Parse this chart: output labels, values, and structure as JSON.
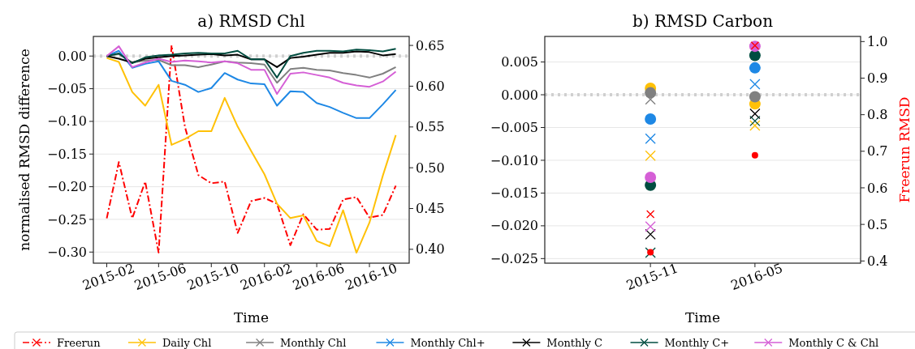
{
  "chart_data": [
    {
      "type": "line",
      "title": "a) RMSD Chl",
      "xlabel": "Time",
      "ylabel": "normalised RMSD difference",
      "x": [
        "2015-02",
        "2015-03",
        "2015-04",
        "2015-05",
        "2015-06",
        "2015-07",
        "2015-08",
        "2015-09",
        "2015-10",
        "2015-11",
        "2015-12",
        "2016-01",
        "2016-02",
        "2016-03",
        "2016-04",
        "2016-05",
        "2016-06",
        "2016-07",
        "2016-08",
        "2016-09",
        "2016-10",
        "2016-11",
        "2016-12"
      ],
      "series": [
        {
          "name": "Freerun",
          "color": "#ff0000",
          "axis": "y2",
          "line_style": "dashed",
          "values": [
            0.438,
            0.507,
            0.438,
            0.483,
            0.396,
            0.65,
            0.55,
            0.491,
            0.481,
            0.483,
            0.42,
            0.459,
            0.463,
            0.456,
            0.405,
            0.443,
            0.424,
            0.425,
            0.461,
            0.464,
            0.439,
            0.442,
            0.478
          ]
        },
        {
          "name": "Daily Chl",
          "color": "#ffc107",
          "values": [
            -0.003,
            -0.009,
            -0.055,
            -0.076,
            -0.044,
            -0.136,
            -0.127,
            -0.115,
            -0.115,
            -0.064,
            -0.108,
            -0.145,
            -0.181,
            -0.226,
            -0.248,
            -0.244,
            -0.283,
            -0.291,
            -0.236,
            -0.301,
            -0.255,
            -0.183,
            -0.121
          ]
        },
        {
          "name": "Monthly Chl",
          "color": "#808080",
          "values": [
            0,
            0.003,
            -0.01,
            -0.007,
            -0.006,
            -0.014,
            -0.014,
            -0.017,
            -0.013,
            -0.008,
            -0.01,
            -0.011,
            -0.013,
            -0.041,
            -0.02,
            -0.018,
            -0.021,
            -0.022,
            -0.026,
            -0.029,
            -0.033,
            -0.027,
            -0.017
          ]
        },
        {
          "name": "Monthly Chl+",
          "color": "#1e88e5",
          "values": [
            0,
            0.008,
            -0.018,
            -0.012,
            -0.008,
            -0.038,
            -0.044,
            -0.055,
            -0.049,
            -0.026,
            -0.036,
            -0.042,
            -0.043,
            -0.076,
            -0.054,
            -0.055,
            -0.072,
            -0.078,
            -0.087,
            -0.095,
            -0.095,
            -0.074,
            -0.052
          ]
        },
        {
          "name": "Monthly C",
          "color": "#000000",
          "values": [
            0,
            -0.004,
            -0.01,
            -0.004,
            -0.002,
            0,
            0.001,
            0.002,
            0.003,
            0.001,
            0.002,
            -0.005,
            -0.005,
            -0.017,
            -0.003,
            -0.001,
            0.002,
            0.005,
            0.005,
            0.007,
            0.006,
            0.001,
            0.003
          ]
        },
        {
          "name": "Monthly C+",
          "color": "#004d40",
          "values": [
            0,
            0.004,
            -0.011,
            -0.002,
            0.001,
            0.002,
            0.004,
            0.005,
            0.004,
            0.004,
            0.008,
            -0.005,
            -0.005,
            -0.033,
            0,
            0.005,
            0.008,
            0.008,
            0.007,
            0.01,
            0.009,
            0.007,
            0.011
          ]
        },
        {
          "name": "Monthly C & Chl",
          "color": "#d55fd6",
          "values": [
            0,
            0.015,
            -0.017,
            -0.01,
            -0.004,
            -0.009,
            -0.007,
            -0.008,
            -0.01,
            -0.008,
            -0.011,
            -0.021,
            -0.021,
            -0.058,
            -0.027,
            -0.025,
            -0.029,
            -0.033,
            -0.041,
            -0.045,
            -0.047,
            -0.039,
            -0.024
          ]
        }
      ],
      "xlim": [
        "2015-01",
        "2017-01"
      ],
      "xticks": [
        "2015-02",
        "2015-06",
        "2015-10",
        "2016-02",
        "2016-06",
        "2016-10"
      ],
      "ylim": [
        -0.317,
        0.03
      ],
      "yticks": [
        {
          "value": 0,
          "label": "0.00"
        },
        {
          "value": -0.05,
          "label": "−0.05"
        },
        {
          "value": -0.1,
          "label": "−0.10"
        },
        {
          "value": -0.15,
          "label": "−0.15"
        },
        {
          "value": -0.2,
          "label": "−0.20"
        },
        {
          "value": -0.25,
          "label": "−0.25"
        },
        {
          "value": -0.3,
          "label": "−0.30"
        }
      ],
      "y2lim": [
        0.383,
        0.661
      ],
      "y2ticks": [
        {
          "value": 0.4,
          "label": "0.40"
        },
        {
          "value": 0.45,
          "label": "0.45"
        },
        {
          "value": 0.5,
          "label": "0.50"
        },
        {
          "value": 0.55,
          "label": "0.55"
        },
        {
          "value": 0.6,
          "label": "0.60"
        },
        {
          "value": 0.65,
          "label": "0.65"
        }
      ],
      "grid": "y",
      "legend": "bottom",
      "ref_lines": [
        {
          "axis": "y",
          "value": 0,
          "color": "#d0d0d0",
          "line_style": "dotted"
        }
      ]
    },
    {
      "type": "scatter",
      "title": "b) RMSD Carbon",
      "xlabel": "Time",
      "y2label": "Freerun RMSD",
      "x": [
        "2015-11",
        "2016-05"
      ],
      "series": [
        {
          "color": "#ffc107",
          "marker": "cross",
          "values": [
            -0.0093,
            -0.0047
          ]
        },
        {
          "color": "#808080",
          "marker": "cross",
          "values": [
            -0.0007,
            null
          ]
        },
        {
          "color": "#1e88e5",
          "marker": "cross",
          "values": [
            -0.0067,
            0.0016
          ]
        },
        {
          "color": "#000000",
          "marker": "cross",
          "values": [
            -0.0213,
            -0.0029
          ]
        },
        {
          "color": "#004d40",
          "marker": "cross",
          "values": [
            -0.0241,
            -0.004
          ]
        },
        {
          "color": "#d55fd6",
          "marker": "cross",
          "values": [
            -0.0201,
            null
          ]
        },
        {
          "color": "#ffc107",
          "marker": "circle",
          "values": [
            0.001,
            -0.0014
          ]
        },
        {
          "color": "#1e88e5",
          "marker": "circle",
          "values": [
            -0.0037,
            0.0041
          ]
        },
        {
          "color": "#004d40",
          "marker": "circle",
          "values": [
            -0.0138,
            0.006
          ]
        },
        {
          "color": "#808080",
          "marker": "circle",
          "values": [
            0.0003,
            -0.0003
          ]
        },
        {
          "color": "#d55fd6",
          "marker": "circle",
          "values": [
            -0.0126,
            0.0074
          ]
        },
        {
          "color": "#ff0000",
          "marker": "circle",
          "axis": "y2",
          "values": [
            0.424,
            0.689
          ]
        },
        {
          "color": "#ff0000",
          "marker": "cross",
          "axis": "y2",
          "values": [
            0.528,
            0.989
          ]
        }
      ],
      "xlim": [
        "2015-05",
        "2016-11"
      ],
      "xticks": [
        "2015-11",
        "2016-05"
      ],
      "ylim": [
        -0.0257,
        0.0089
      ],
      "yticks": [
        {
          "value": 0.005,
          "label": "0.005"
        },
        {
          "value": 0,
          "label": "0.000"
        },
        {
          "value": -0.005,
          "label": "−0.005"
        },
        {
          "value": -0.01,
          "label": "−0.010"
        },
        {
          "value": -0.015,
          "label": "−0.015"
        },
        {
          "value": -0.02,
          "label": "−0.020"
        },
        {
          "value": -0.025,
          "label": "−0.025"
        }
      ],
      "y2lim": [
        0.394,
        1.014
      ],
      "y2ticks": [
        {
          "value": 0.4,
          "label": "0.4"
        },
        {
          "value": 0.5,
          "label": "0.5"
        },
        {
          "value": 0.6,
          "label": "0.6"
        },
        {
          "value": 0.7,
          "label": "0.7"
        },
        {
          "value": 0.8,
          "label": "0.8"
        },
        {
          "value": 0.9,
          "label": "0.9"
        },
        {
          "value": 1,
          "label": "1.0"
        }
      ],
      "grid": "y",
      "ref_lines": [
        {
          "axis": "y",
          "value": 0,
          "color": "#d0d0d0",
          "line_style": "dotted"
        }
      ]
    }
  ]
}
